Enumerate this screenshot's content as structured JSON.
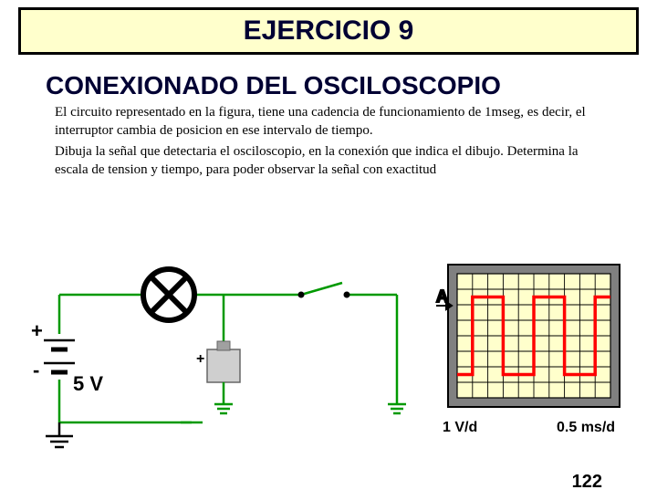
{
  "header": {
    "title": "EJERCICIO 9"
  },
  "subtitle": "CONEXIONADO DEL OSCILOSCOPIO",
  "paragraphs": {
    "p1": "El circuito representado en la figura, tiene una cadencia de funcionamiento de 1mseg, es decir, el interruptor cambia de posicion en ese intervalo de tiempo.",
    "p2": "Dibuja la señal que detectaria el osciloscopio, en la conexión que indica el dibujo. Determina la escala de tension y tiempo, para poder observar la señal con exactitud"
  },
  "circuit": {
    "voltage_label": "5 V",
    "plus": "+",
    "minus": "-",
    "wire_color": "#009900",
    "lamp_stroke": "#000000",
    "background": "#ffffff"
  },
  "scope": {
    "frame_color": "#808080",
    "grid_bg": "#ffffcc",
    "grid_line": "#000000",
    "trace_color": "#ff0000",
    "grid_cols": 10,
    "grid_rows": 8,
    "y_scale": "1 V/d",
    "x_scale": "0.5 ms/d",
    "waveform": {
      "low_row": 6.5,
      "high_row": 1.5,
      "period_cols": 4,
      "phase_cols": 1
    },
    "arrow_label": "A"
  },
  "page_number": "122"
}
